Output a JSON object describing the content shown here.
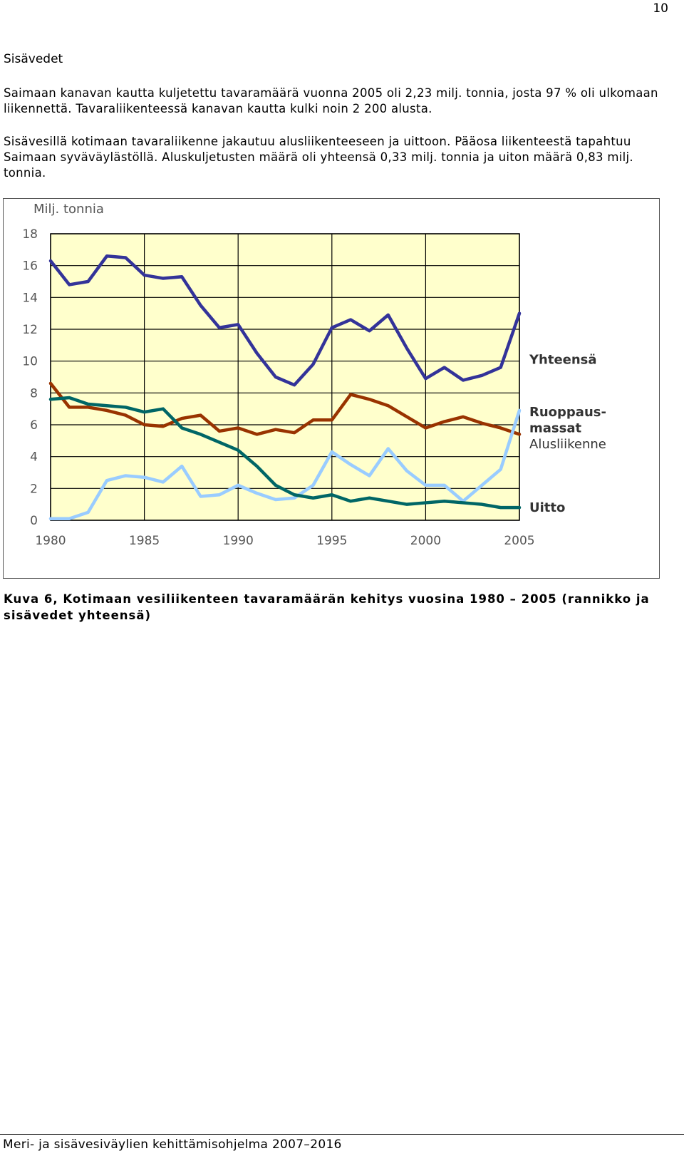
{
  "page": {
    "number": "10",
    "section_heading": "Sisävedet",
    "paragraph1": "Saimaan kanavan kautta kuljetettu tavaramäärä vuonna 2005 oli 2,23 milj. tonnia, josta 97 % oli ulkomaan liikennettä. Tavaraliikenteessä kanavan kautta kulki noin 2 200 alusta.",
    "paragraph2": "Sisävesillä kotimaan tavaraliikenne jakautuu alusliikenteeseen ja uittoon. Pääosa liikenteestä tapahtuu Saimaan syväväylästöllä. Aluskuljetusten määrä oli yhteensä 0,33 milj. tonnia ja uiton määrä 0,83 milj. tonnia.",
    "caption": "Kuva 6, Kotimaan vesiliikenteen tavaramäärän kehitys vuosina 1980 – 2005 (rannikko ja sisävedet yhteensä)",
    "footer": "Meri- ja sisävesiväylien kehittämisohjelma 2007–2016"
  },
  "chart_data": {
    "type": "line",
    "ylabel": "Milj. tonnia",
    "ylim": [
      0,
      18
    ],
    "yticks": [
      "0",
      "2",
      "4",
      "6",
      "8",
      "10",
      "12",
      "14",
      "16",
      "18"
    ],
    "xlim": [
      1980,
      2005
    ],
    "xticks": [
      "1980",
      "1985",
      "1990",
      "1995",
      "2000",
      "2005"
    ],
    "grid": true,
    "plot_background": "#ffffcc",
    "legend": "right, labels at line ends",
    "x": [
      1980,
      1981,
      1982,
      1983,
      1984,
      1985,
      1986,
      1987,
      1988,
      1989,
      1990,
      1991,
      1992,
      1993,
      1994,
      1995,
      1996,
      1997,
      1998,
      1999,
      2000,
      2001,
      2002,
      2003,
      2004,
      2005
    ],
    "series": [
      {
        "name": "Yhteensä",
        "color": "#333399",
        "values": [
          16.3,
          14.8,
          15.0,
          16.6,
          16.5,
          15.4,
          15.2,
          15.3,
          13.5,
          12.1,
          12.3,
          10.5,
          9.0,
          8.5,
          9.8,
          12.1,
          12.6,
          11.9,
          12.9,
          10.8,
          8.9,
          9.6,
          8.8,
          9.1,
          9.6,
          13.0
        ]
      },
      {
        "name": "Ruoppausmassat",
        "label_lines": [
          "Ruoppaus-",
          "massat"
        ],
        "color": "#993300",
        "values": [
          8.6,
          7.1,
          7.1,
          6.9,
          6.6,
          6.0,
          5.9,
          6.4,
          6.6,
          5.6,
          5.8,
          5.4,
          5.7,
          5.5,
          6.3,
          6.3,
          7.9,
          7.6,
          7.2,
          6.5,
          5.8,
          6.2,
          6.5,
          6.1,
          5.8,
          5.4
        ]
      },
      {
        "name": "Alusliikenne",
        "color": "#99ccff",
        "values": [
          0.1,
          0.1,
          0.5,
          2.5,
          2.8,
          2.7,
          2.4,
          3.4,
          1.5,
          1.6,
          2.2,
          1.7,
          1.3,
          1.4,
          2.2,
          4.3,
          3.5,
          2.8,
          4.5,
          3.1,
          2.2,
          2.2,
          1.2,
          2.2,
          3.2,
          6.9
        ]
      },
      {
        "name": "Uitto",
        "color": "#006666",
        "values": [
          7.6,
          7.7,
          7.3,
          7.2,
          7.1,
          6.8,
          7.0,
          5.8,
          5.4,
          4.9,
          4.4,
          3.4,
          2.2,
          1.6,
          1.4,
          1.6,
          1.2,
          1.4,
          1.2,
          1.0,
          1.1,
          1.2,
          1.1,
          1.0,
          0.8,
          0.8
        ]
      }
    ]
  }
}
